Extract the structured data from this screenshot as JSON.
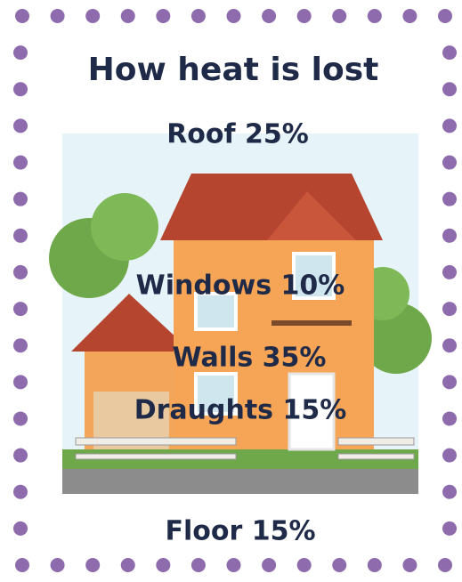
{
  "title": "How heat is lost",
  "labels": [
    "Roof 25%",
    "Windows 10%",
    "Walls 35%",
    "Draughts 15%",
    "Floor 15%"
  ]
}
